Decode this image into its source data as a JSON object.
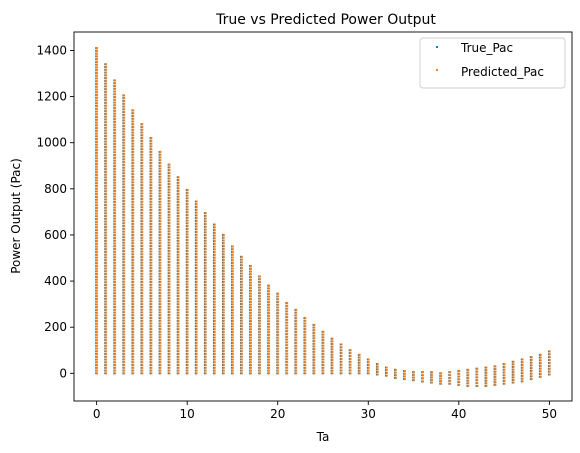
{
  "chart_data": {
    "type": "scatter",
    "title": "True vs Predicted Power Output",
    "xlabel": "Ta",
    "ylabel": "Power Output (Pac)",
    "xlim": [
      -2.5,
      52.5
    ],
    "ylim": [
      -120,
      1480
    ],
    "xticks": [
      0,
      10,
      20,
      30,
      40,
      50
    ],
    "yticks": [
      0,
      200,
      400,
      600,
      800,
      1000,
      1200,
      1400
    ],
    "grid": false,
    "legend_position": "top-right",
    "x": [
      0,
      1,
      2,
      3,
      4,
      5,
      6,
      7,
      8,
      9,
      10,
      11,
      12,
      13,
      14,
      15,
      16,
      17,
      18,
      19,
      20,
      21,
      22,
      23,
      24,
      25,
      26,
      27,
      28,
      29,
      30,
      31,
      32,
      33,
      34,
      35,
      36,
      37,
      38,
      39,
      40,
      41,
      42,
      43,
      44,
      45,
      46,
      47,
      48,
      49,
      50
    ],
    "series": [
      {
        "name": "True_Pac",
        "color": "#1f77b4",
        "ymin": [
          0,
          0,
          0,
          0,
          0,
          0,
          0,
          0,
          0,
          0,
          0,
          0,
          0,
          0,
          0,
          0,
          0,
          0,
          0,
          0,
          0,
          0,
          0,
          0,
          0,
          0,
          0,
          0,
          0,
          0,
          0,
          -5,
          -10,
          -20,
          -25,
          -30,
          -35,
          -40,
          -45,
          -45,
          -50,
          -55,
          -55,
          -55,
          -50,
          -45,
          -40,
          -35,
          -25,
          -15,
          -5
        ],
        "ymax": [
          1410,
          1340,
          1270,
          1205,
          1140,
          1080,
          1020,
          960,
          905,
          850,
          795,
          745,
          695,
          645,
          600,
          550,
          505,
          465,
          420,
          380,
          345,
          305,
          275,
          240,
          210,
          180,
          150,
          125,
          100,
          80,
          60,
          40,
          25,
          15,
          10,
          5,
          5,
          5,
          0,
          5,
          10,
          15,
          20,
          25,
          30,
          40,
          50,
          60,
          70,
          80,
          95
        ]
      },
      {
        "name": "Predicted_Pac",
        "color": "#ff7f0e",
        "ymin": [
          0,
          0,
          0,
          0,
          0,
          0,
          0,
          0,
          0,
          0,
          0,
          0,
          0,
          0,
          0,
          0,
          0,
          0,
          0,
          0,
          0,
          0,
          0,
          0,
          0,
          0,
          0,
          0,
          0,
          0,
          0,
          -5,
          -10,
          -20,
          -25,
          -30,
          -35,
          -40,
          -45,
          -45,
          -50,
          -55,
          -55,
          -55,
          -50,
          -45,
          -40,
          -35,
          -25,
          -15,
          -5
        ],
        "ymax": [
          1410,
          1340,
          1270,
          1205,
          1140,
          1080,
          1020,
          960,
          905,
          850,
          795,
          745,
          695,
          645,
          600,
          550,
          505,
          465,
          420,
          380,
          345,
          305,
          275,
          240,
          210,
          180,
          150,
          125,
          100,
          80,
          60,
          40,
          25,
          15,
          10,
          5,
          5,
          5,
          0,
          5,
          10,
          15,
          20,
          25,
          30,
          40,
          50,
          60,
          70,
          80,
          95
        ]
      }
    ]
  }
}
